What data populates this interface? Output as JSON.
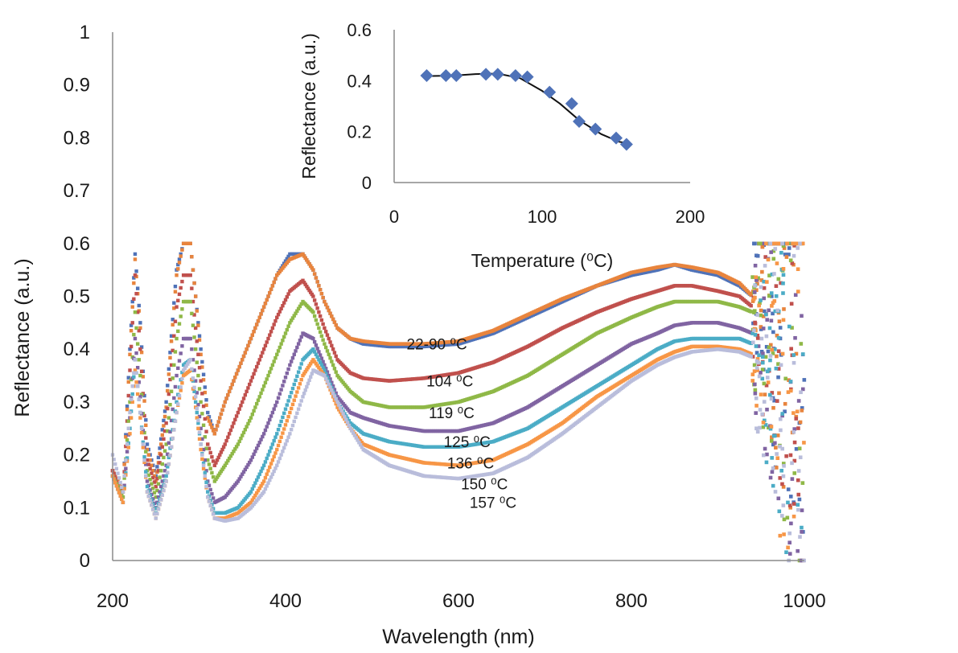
{
  "chart_data": [
    {
      "type": "scatter",
      "title": "",
      "xlabel": "Wavelength (nm)",
      "ylabel": "Reflectance (a.u.)",
      "xlim": [
        200,
        1000
      ],
      "ylim": [
        0,
        1
      ],
      "x_ticks": [
        "200",
        "400",
        "600",
        "800",
        "1000"
      ],
      "y_ticks": [
        "0",
        "0.1",
        "0.2",
        "0.3",
        "0.4",
        "0.5",
        "0.6",
        "0.7",
        "0.8",
        "0.9",
        "1"
      ],
      "grid": false,
      "legend": "none",
      "curve_labels": [
        {
          "text": "22-90 ⁰C",
          "x": 575,
          "y": 0.41
        },
        {
          "text": "104 ⁰C",
          "x": 590,
          "y": 0.34
        },
        {
          "text": "119 ⁰C",
          "x": 592,
          "y": 0.28
        },
        {
          "text": "125 ⁰C",
          "x": 610,
          "y": 0.225
        },
        {
          "text": "136 ⁰C",
          "x": 614,
          "y": 0.185
        },
        {
          "text": "150 ⁰C",
          "x": 630,
          "y": 0.145
        },
        {
          "text": "157 ⁰C",
          "x": 640,
          "y": 0.11
        }
      ],
      "series": [
        {
          "name": "22-90 ⁰C",
          "color": "#4f72b8",
          "x": [
            200,
            212,
            220,
            226,
            232,
            240,
            250,
            262,
            274,
            282,
            290,
            296,
            302,
            310,
            318,
            330,
            345,
            360,
            375,
            390,
            405,
            420,
            432,
            445,
            460,
            475,
            490,
            520,
            560,
            600,
            640,
            680,
            720,
            760,
            800,
            830,
            850,
            870,
            900,
            925,
            940
          ],
          "y": [
            0.17,
            0.13,
            0.4,
            0.58,
            0.45,
            0.22,
            0.16,
            0.3,
            0.55,
            0.6,
            0.6,
            0.5,
            0.4,
            0.28,
            0.24,
            0.3,
            0.36,
            0.42,
            0.48,
            0.54,
            0.58,
            0.58,
            0.55,
            0.49,
            0.44,
            0.42,
            0.41,
            0.405,
            0.405,
            0.41,
            0.43,
            0.46,
            0.49,
            0.52,
            0.54,
            0.55,
            0.56,
            0.55,
            0.54,
            0.52,
            0.5
          ]
        },
        {
          "name": "22-90 ⁰C",
          "color": "#e8843d",
          "x": [
            200,
            212,
            220,
            226,
            232,
            240,
            250,
            262,
            274,
            282,
            290,
            296,
            302,
            310,
            318,
            330,
            345,
            360,
            375,
            390,
            405,
            420,
            432,
            445,
            460,
            475,
            490,
            520,
            560,
            600,
            640,
            680,
            720,
            760,
            800,
            830,
            850,
            870,
            900,
            925,
            940
          ],
          "y": [
            0.17,
            0.13,
            0.39,
            0.57,
            0.44,
            0.21,
            0.15,
            0.29,
            0.54,
            0.6,
            0.6,
            0.5,
            0.39,
            0.27,
            0.24,
            0.3,
            0.36,
            0.42,
            0.48,
            0.54,
            0.57,
            0.58,
            0.55,
            0.49,
            0.44,
            0.42,
            0.415,
            0.41,
            0.41,
            0.415,
            0.435,
            0.465,
            0.495,
            0.52,
            0.545,
            0.555,
            0.56,
            0.555,
            0.545,
            0.525,
            0.5
          ]
        },
        {
          "name": "104 ⁰C",
          "color": "#c0504d",
          "x": [
            200,
            212,
            220,
            226,
            232,
            240,
            250,
            262,
            274,
            282,
            290,
            296,
            302,
            310,
            318,
            330,
            345,
            360,
            375,
            390,
            405,
            420,
            432,
            445,
            460,
            475,
            490,
            520,
            560,
            600,
            640,
            680,
            720,
            760,
            800,
            830,
            850,
            870,
            900,
            925,
            940
          ],
          "y": [
            0.17,
            0.12,
            0.36,
            0.54,
            0.4,
            0.19,
            0.14,
            0.26,
            0.48,
            0.54,
            0.54,
            0.44,
            0.34,
            0.22,
            0.18,
            0.22,
            0.28,
            0.34,
            0.4,
            0.46,
            0.51,
            0.53,
            0.5,
            0.44,
            0.38,
            0.355,
            0.345,
            0.34,
            0.345,
            0.355,
            0.375,
            0.405,
            0.44,
            0.47,
            0.495,
            0.51,
            0.52,
            0.52,
            0.51,
            0.5,
            0.48
          ]
        },
        {
          "name": "119 ⁰C",
          "color": "#8fb847",
          "x": [
            200,
            212,
            220,
            226,
            232,
            240,
            250,
            262,
            274,
            282,
            290,
            296,
            302,
            310,
            318,
            330,
            345,
            360,
            375,
            390,
            405,
            420,
            432,
            445,
            460,
            475,
            490,
            520,
            560,
            600,
            640,
            680,
            720,
            760,
            800,
            830,
            850,
            870,
            900,
            925,
            940
          ],
          "y": [
            0.16,
            0.12,
            0.3,
            0.47,
            0.35,
            0.17,
            0.12,
            0.22,
            0.42,
            0.49,
            0.49,
            0.4,
            0.3,
            0.19,
            0.15,
            0.18,
            0.22,
            0.27,
            0.33,
            0.39,
            0.45,
            0.49,
            0.47,
            0.41,
            0.35,
            0.32,
            0.3,
            0.29,
            0.29,
            0.3,
            0.32,
            0.35,
            0.39,
            0.43,
            0.46,
            0.48,
            0.49,
            0.49,
            0.49,
            0.48,
            0.47
          ]
        },
        {
          "name": "125 ⁰C",
          "color": "#8064a2",
          "x": [
            200,
            212,
            220,
            226,
            232,
            240,
            250,
            262,
            274,
            282,
            290,
            296,
            302,
            310,
            318,
            330,
            345,
            360,
            375,
            390,
            405,
            420,
            432,
            445,
            460,
            475,
            490,
            520,
            560,
            600,
            640,
            680,
            720,
            760,
            800,
            830,
            850,
            870,
            900,
            925,
            940
          ],
          "y": [
            0.16,
            0.11,
            0.27,
            0.42,
            0.31,
            0.15,
            0.1,
            0.18,
            0.35,
            0.42,
            0.42,
            0.34,
            0.25,
            0.15,
            0.11,
            0.12,
            0.15,
            0.19,
            0.24,
            0.3,
            0.37,
            0.43,
            0.42,
            0.37,
            0.31,
            0.28,
            0.27,
            0.255,
            0.245,
            0.245,
            0.26,
            0.29,
            0.33,
            0.37,
            0.41,
            0.43,
            0.445,
            0.45,
            0.45,
            0.44,
            0.43
          ]
        },
        {
          "name": "136 ⁰C",
          "color": "#4bacc6",
          "x": [
            200,
            212,
            220,
            226,
            232,
            240,
            250,
            262,
            274,
            282,
            290,
            296,
            302,
            310,
            318,
            330,
            345,
            360,
            375,
            390,
            405,
            420,
            432,
            445,
            460,
            475,
            490,
            520,
            560,
            600,
            640,
            680,
            720,
            760,
            800,
            830,
            850,
            870,
            900,
            925,
            940
          ],
          "y": [
            0.16,
            0.11,
            0.25,
            0.38,
            0.28,
            0.14,
            0.09,
            0.16,
            0.3,
            0.37,
            0.38,
            0.3,
            0.22,
            0.13,
            0.09,
            0.09,
            0.1,
            0.13,
            0.18,
            0.24,
            0.31,
            0.38,
            0.4,
            0.36,
            0.3,
            0.26,
            0.24,
            0.225,
            0.215,
            0.215,
            0.225,
            0.25,
            0.29,
            0.33,
            0.37,
            0.4,
            0.415,
            0.42,
            0.42,
            0.42,
            0.41
          ]
        },
        {
          "name": "150 ⁰C",
          "color": "#f79646",
          "x": [
            200,
            212,
            220,
            226,
            232,
            240,
            250,
            262,
            274,
            282,
            290,
            296,
            302,
            310,
            318,
            330,
            345,
            360,
            375,
            390,
            405,
            420,
            432,
            445,
            460,
            475,
            490,
            520,
            560,
            600,
            640,
            680,
            720,
            760,
            800,
            830,
            850,
            870,
            900,
            925,
            940
          ],
          "y": [
            0.16,
            0.11,
            0.24,
            0.36,
            0.27,
            0.13,
            0.08,
            0.15,
            0.28,
            0.35,
            0.36,
            0.29,
            0.21,
            0.12,
            0.08,
            0.08,
            0.09,
            0.11,
            0.15,
            0.21,
            0.28,
            0.35,
            0.38,
            0.35,
            0.29,
            0.25,
            0.22,
            0.2,
            0.185,
            0.18,
            0.19,
            0.22,
            0.26,
            0.31,
            0.35,
            0.38,
            0.395,
            0.405,
            0.405,
            0.4,
            0.39
          ]
        },
        {
          "name": "157 ⁰C",
          "color": "#b9bddb",
          "x": [
            200,
            212,
            220,
            226,
            232,
            240,
            250,
            262,
            274,
            282,
            290,
            296,
            302,
            310,
            318,
            330,
            345,
            360,
            375,
            390,
            405,
            420,
            432,
            445,
            460,
            475,
            490,
            520,
            560,
            600,
            640,
            680,
            720,
            760,
            800,
            830,
            850,
            870,
            900,
            925,
            940
          ],
          "y": [
            0.2,
            0.13,
            0.28,
            0.38,
            0.28,
            0.13,
            0.08,
            0.15,
            0.28,
            0.36,
            0.38,
            0.31,
            0.22,
            0.12,
            0.08,
            0.075,
            0.08,
            0.1,
            0.13,
            0.18,
            0.24,
            0.31,
            0.36,
            0.35,
            0.3,
            0.25,
            0.21,
            0.18,
            0.16,
            0.155,
            0.165,
            0.195,
            0.24,
            0.29,
            0.34,
            0.37,
            0.385,
            0.395,
            0.4,
            0.395,
            0.385
          ]
        }
      ]
    },
    {
      "type": "scatter",
      "title": "",
      "xlabel": "Temperature (⁰C)",
      "ylabel": "Reflectance (a.u.)",
      "xlim": [
        0,
        200
      ],
      "ylim": [
        0,
        0.6
      ],
      "x_ticks": [
        "0",
        "100",
        "200"
      ],
      "y_ticks": [
        "0",
        "0.2",
        "0.4",
        "0.6"
      ],
      "grid": false,
      "legend": "none",
      "marker_color": "#4f72b8",
      "fit_color": "#111111",
      "series": [
        {
          "name": "",
          "x": [
            22,
            35,
            42,
            62,
            70,
            82,
            90,
            105,
            120,
            125,
            136,
            150,
            157
          ],
          "y": [
            0.42,
            0.42,
            0.42,
            0.425,
            0.425,
            0.42,
            0.415,
            0.355,
            0.31,
            0.24,
            0.21,
            0.175,
            0.15
          ]
        }
      ],
      "fit": {
        "x": [
          22,
          40,
          55,
          70,
          85,
          100,
          112,
          125,
          140,
          152,
          157
        ],
        "y": [
          0.418,
          0.42,
          0.426,
          0.428,
          0.41,
          0.36,
          0.31,
          0.245,
          0.19,
          0.16,
          0.155
        ]
      }
    }
  ]
}
